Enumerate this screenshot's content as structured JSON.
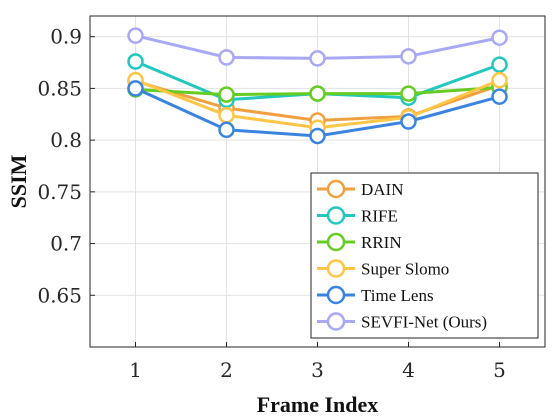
{
  "chart_data": {
    "type": "line",
    "title": "",
    "xlabel": "Frame Index",
    "ylabel": "SSIM",
    "x": [
      1,
      2,
      3,
      4,
      5
    ],
    "xlim": [
      0.5,
      5.5
    ],
    "ylim": [
      0.6,
      0.92
    ],
    "xticks": [
      "1",
      "2",
      "3",
      "4",
      "5"
    ],
    "yticks": [
      "0.65",
      "0.7",
      "0.75",
      "0.8",
      "0.85",
      "0.9"
    ],
    "grid": true,
    "legend_position": "bottom-right",
    "series": [
      {
        "name": "DAIN",
        "color": "#F0A040",
        "values": [
          0.857,
          0.831,
          0.819,
          0.823,
          0.853
        ]
      },
      {
        "name": "RIFE",
        "color": "#22C7C0",
        "values": [
          0.876,
          0.839,
          0.845,
          0.841,
          0.873
        ]
      },
      {
        "name": "RRIN",
        "color": "#66CC22",
        "values": [
          0.849,
          0.844,
          0.845,
          0.845,
          0.851
        ]
      },
      {
        "name": "Super Slomo",
        "color": "#FFC545",
        "values": [
          0.858,
          0.824,
          0.812,
          0.822,
          0.858
        ]
      },
      {
        "name": "Time Lens",
        "color": "#3A84E0",
        "values": [
          0.85,
          0.81,
          0.804,
          0.818,
          0.842
        ]
      },
      {
        "name": "SEVFI-Net (Ours)",
        "color": "#A8A8F5",
        "values": [
          0.901,
          0.88,
          0.879,
          0.881,
          0.899
        ]
      }
    ]
  }
}
